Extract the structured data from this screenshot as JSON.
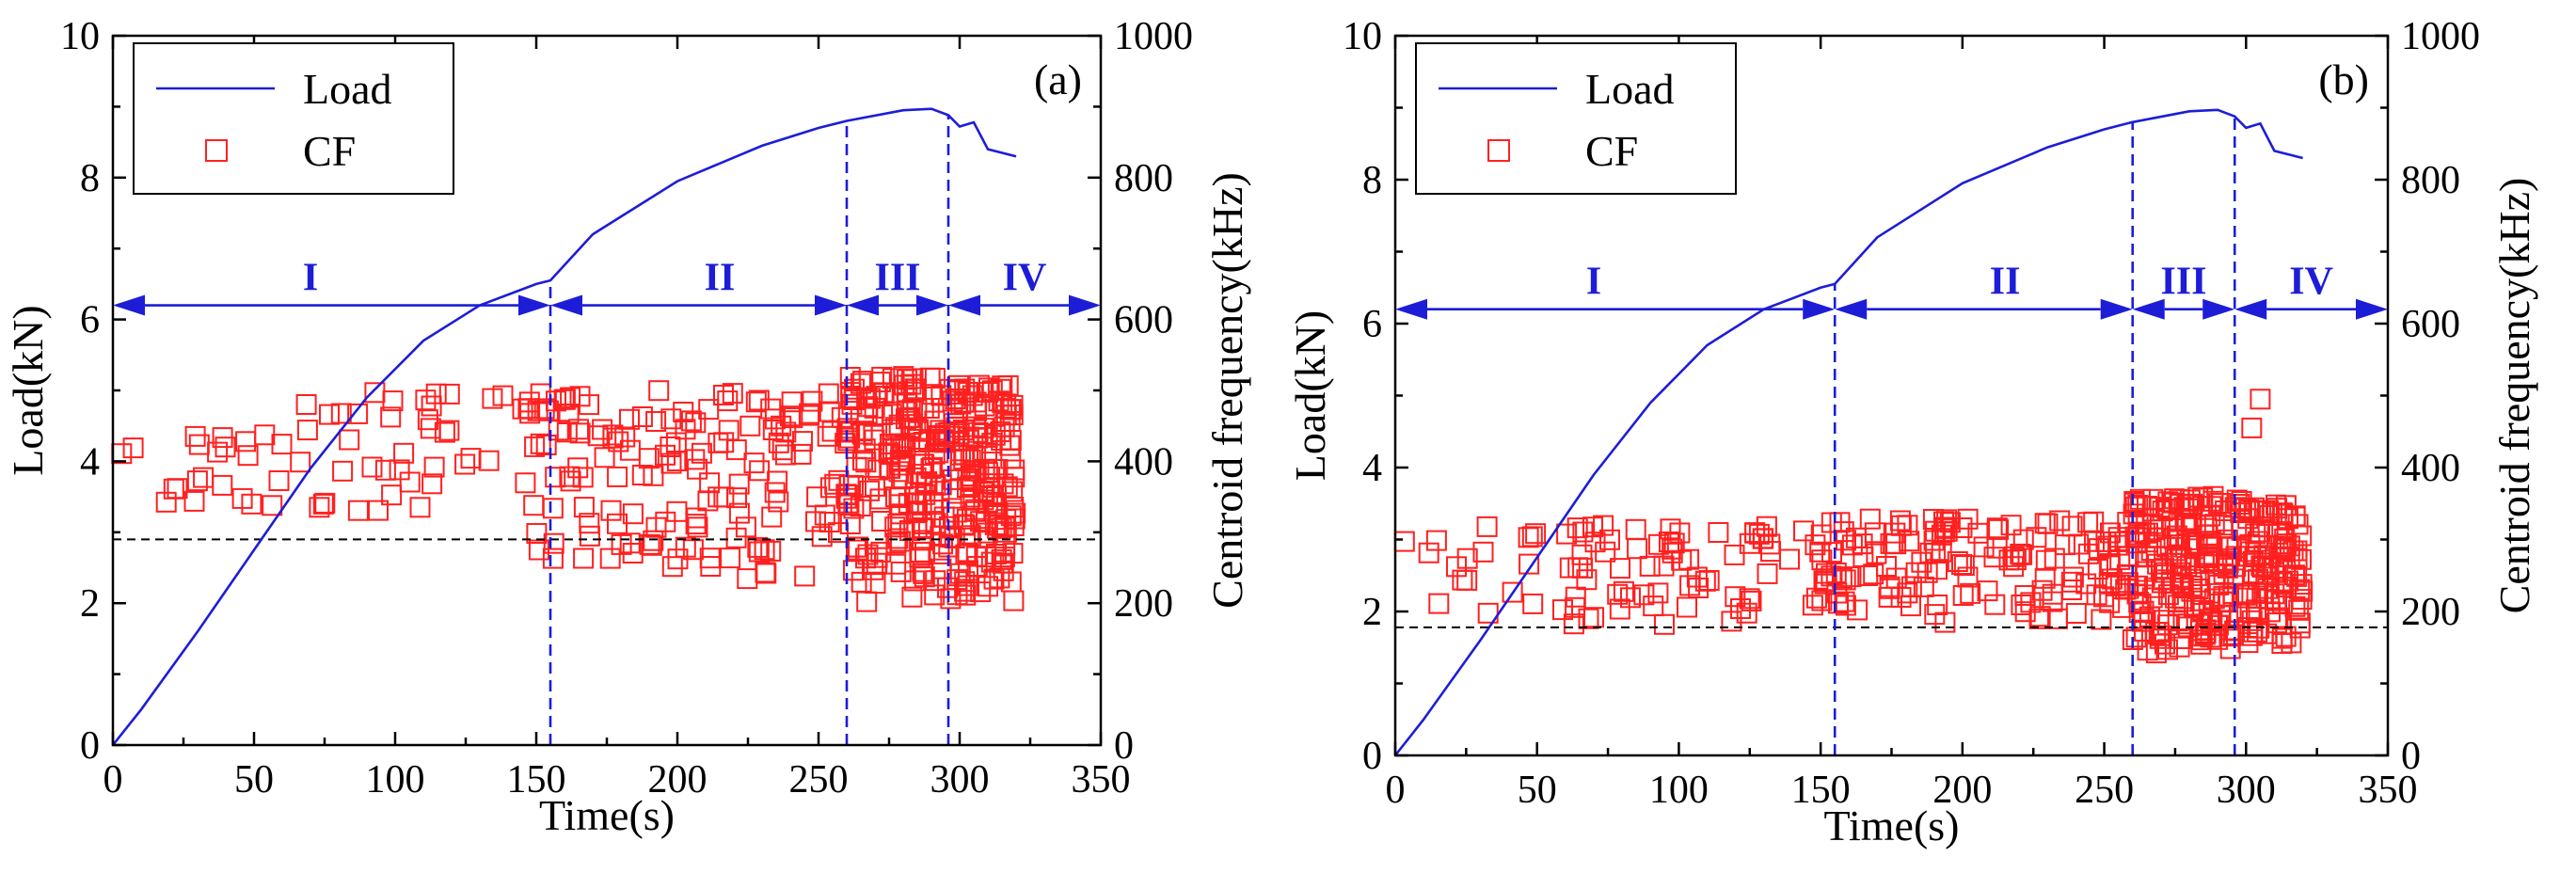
{
  "chart_data": [
    {
      "type": "line+scatter",
      "panel_label": "(a)",
      "xlabel": "Time(s)",
      "ylabel_left": "Load(kN)",
      "ylabel_right": "Centroid frequency(kHz)",
      "xlim": [
        0,
        350
      ],
      "ylim_left": [
        0,
        10
      ],
      "ylim_right": [
        0,
        1000
      ],
      "xticks": [
        0,
        50,
        100,
        150,
        200,
        250,
        300,
        350
      ],
      "yticks_left": [
        0,
        2,
        4,
        6,
        8,
        10
      ],
      "yticks_right": [
        0,
        200,
        400,
        600,
        800,
        1000
      ],
      "legend": [
        "Load",
        "CF"
      ],
      "legend_position": "top-left",
      "load_series": {
        "name": "Load",
        "points": [
          [
            0,
            0
          ],
          [
            10,
            0.5
          ],
          [
            30,
            1.6
          ],
          [
            50,
            2.75
          ],
          [
            70,
            3.9
          ],
          [
            90,
            4.9
          ],
          [
            110,
            5.7
          ],
          [
            130,
            6.2
          ],
          [
            150,
            6.5
          ],
          [
            155,
            6.55
          ],
          [
            170,
            7.2
          ],
          [
            200,
            7.95
          ],
          [
            230,
            8.45
          ],
          [
            250,
            8.7
          ],
          [
            260,
            8.8
          ],
          [
            280,
            8.95
          ],
          [
            290,
            8.97
          ],
          [
            296,
            8.88
          ],
          [
            300,
            8.72
          ],
          [
            305,
            8.78
          ],
          [
            310,
            8.4
          ],
          [
            320,
            8.3
          ]
        ]
      },
      "cf_series": {
        "name": "CF",
        "stage_specs": [
          {
            "range": [
              3,
              60
            ],
            "count": 22,
            "cf_range": [
              330,
              440
            ]
          },
          {
            "range": [
              60,
              150
            ],
            "count": 45,
            "cf_range": [
              330,
              500
            ]
          },
          {
            "range": [
              150,
              260
            ],
            "count": 150,
            "cf_range": [
              230,
              500
            ]
          },
          {
            "range": [
              260,
              296
            ],
            "count": 180,
            "cf_range": [
              200,
              520
            ]
          },
          {
            "range": [
              296,
              320
            ],
            "count": 150,
            "cf_range": [
              200,
              510
            ]
          }
        ]
      },
      "threshold_cf": 290,
      "stage_boundaries": [
        155,
        260,
        296
      ],
      "stage_arrow_load": 6.2,
      "stages": [
        {
          "label": "I",
          "x": 70
        },
        {
          "label": "II",
          "x": 215
        },
        {
          "label": "III",
          "x": 278
        },
        {
          "label": "IV",
          "x": 323
        }
      ]
    },
    {
      "type": "line+scatter",
      "panel_label": "(b)",
      "xlabel": "Time(s)",
      "ylabel_left": "Load(kN)",
      "ylabel_right": "Centroid frequency(kHz)",
      "xlim": [
        0,
        350
      ],
      "ylim_left": [
        0,
        10
      ],
      "ylim_right": [
        0,
        1000
      ],
      "xticks": [
        0,
        50,
        100,
        150,
        200,
        250,
        300,
        350
      ],
      "yticks_left": [
        0,
        2,
        4,
        6,
        8,
        10
      ],
      "yticks_right": [
        0,
        200,
        400,
        600,
        800,
        1000
      ],
      "legend": [
        "Load",
        "CF"
      ],
      "legend_position": "top-left",
      "load_series": {
        "name": "Load",
        "points": [
          [
            0,
            0
          ],
          [
            10,
            0.5
          ],
          [
            30,
            1.6
          ],
          [
            50,
            2.75
          ],
          [
            70,
            3.9
          ],
          [
            90,
            4.9
          ],
          [
            110,
            5.7
          ],
          [
            130,
            6.2
          ],
          [
            150,
            6.5
          ],
          [
            155,
            6.55
          ],
          [
            170,
            7.2
          ],
          [
            200,
            7.95
          ],
          [
            230,
            8.45
          ],
          [
            250,
            8.7
          ],
          [
            260,
            8.8
          ],
          [
            280,
            8.95
          ],
          [
            290,
            8.97
          ],
          [
            296,
            8.88
          ],
          [
            300,
            8.72
          ],
          [
            305,
            8.78
          ],
          [
            310,
            8.4
          ],
          [
            320,
            8.3
          ]
        ]
      },
      "cf_series": {
        "name": "CF",
        "stage_specs": [
          {
            "range": [
              3,
              60
            ],
            "count": 18,
            "cf_range": [
              185,
              320
            ]
          },
          {
            "range": [
              60,
              150
            ],
            "count": 70,
            "cf_range": [
              180,
              320
            ]
          },
          {
            "range": [
              150,
              260
            ],
            "count": 150,
            "cf_range": [
              180,
              330
            ]
          },
          {
            "range": [
              260,
              296
            ],
            "count": 180,
            "cf_range": [
              140,
              360
            ]
          },
          {
            "range": [
              296,
              320
            ],
            "count": 110,
            "cf_range": [
              150,
              360
            ]
          }
        ],
        "extra_points": [
          [
            305,
            495
          ],
          [
            302,
            455
          ]
        ]
      },
      "threshold_cf": 178,
      "stage_boundaries": [
        155,
        260,
        296
      ],
      "stage_arrow_load": 6.2,
      "stages": [
        {
          "label": "I",
          "x": 70
        },
        {
          "label": "II",
          "x": 215
        },
        {
          "label": "III",
          "x": 278
        },
        {
          "label": "IV",
          "x": 323
        }
      ]
    }
  ]
}
